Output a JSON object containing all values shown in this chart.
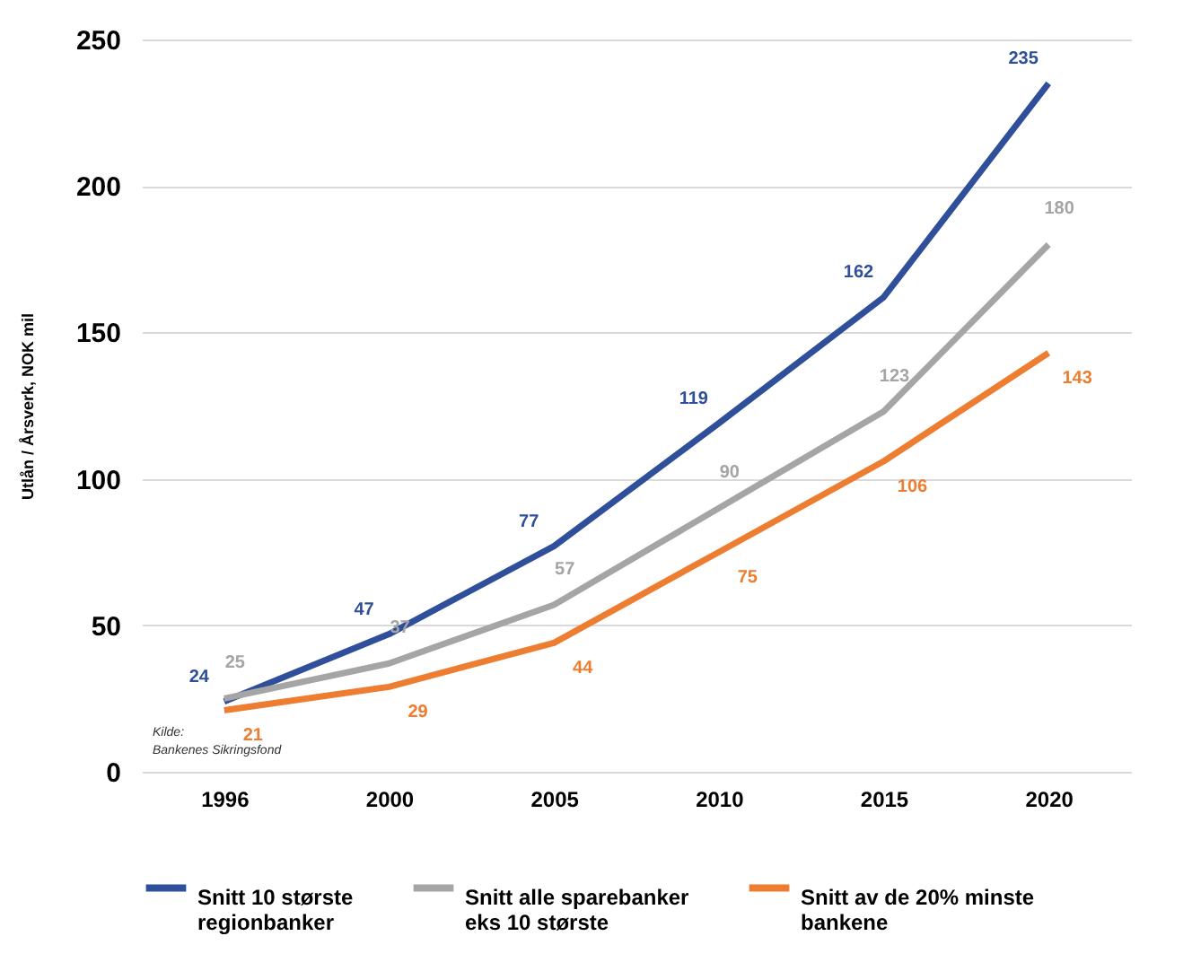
{
  "chart_data": {
    "type": "line",
    "ylabel": "Utlån / Årsverk, NOK mil",
    "categories": [
      "1996",
      "2000",
      "2005",
      "2010",
      "2015",
      "2020"
    ],
    "series": [
      {
        "name": "Snitt 10 største regionbanker",
        "color": "#2f4f9a",
        "values": [
          24,
          47,
          77,
          119,
          162,
          235
        ]
      },
      {
        "name": "Snitt alle sparebanker eks 10 største",
        "color": "#a5a5a5",
        "values": [
          25,
          37,
          57,
          90,
          123,
          180
        ]
      },
      {
        "name": "Snitt av de 20% minste bankene",
        "color": "#ed7d31",
        "values": [
          21,
          29,
          44,
          75,
          106,
          143
        ]
      }
    ],
    "ylim": [
      0,
      250
    ],
    "yticks": [
      0,
      50,
      100,
      150,
      200,
      250
    ],
    "grid": "y",
    "legend": "bottom",
    "data_labels": true,
    "marker": "none",
    "line_style": "solid",
    "annotations": [
      "Kilde:",
      "Bankenes Sikringsfond"
    ]
  }
}
